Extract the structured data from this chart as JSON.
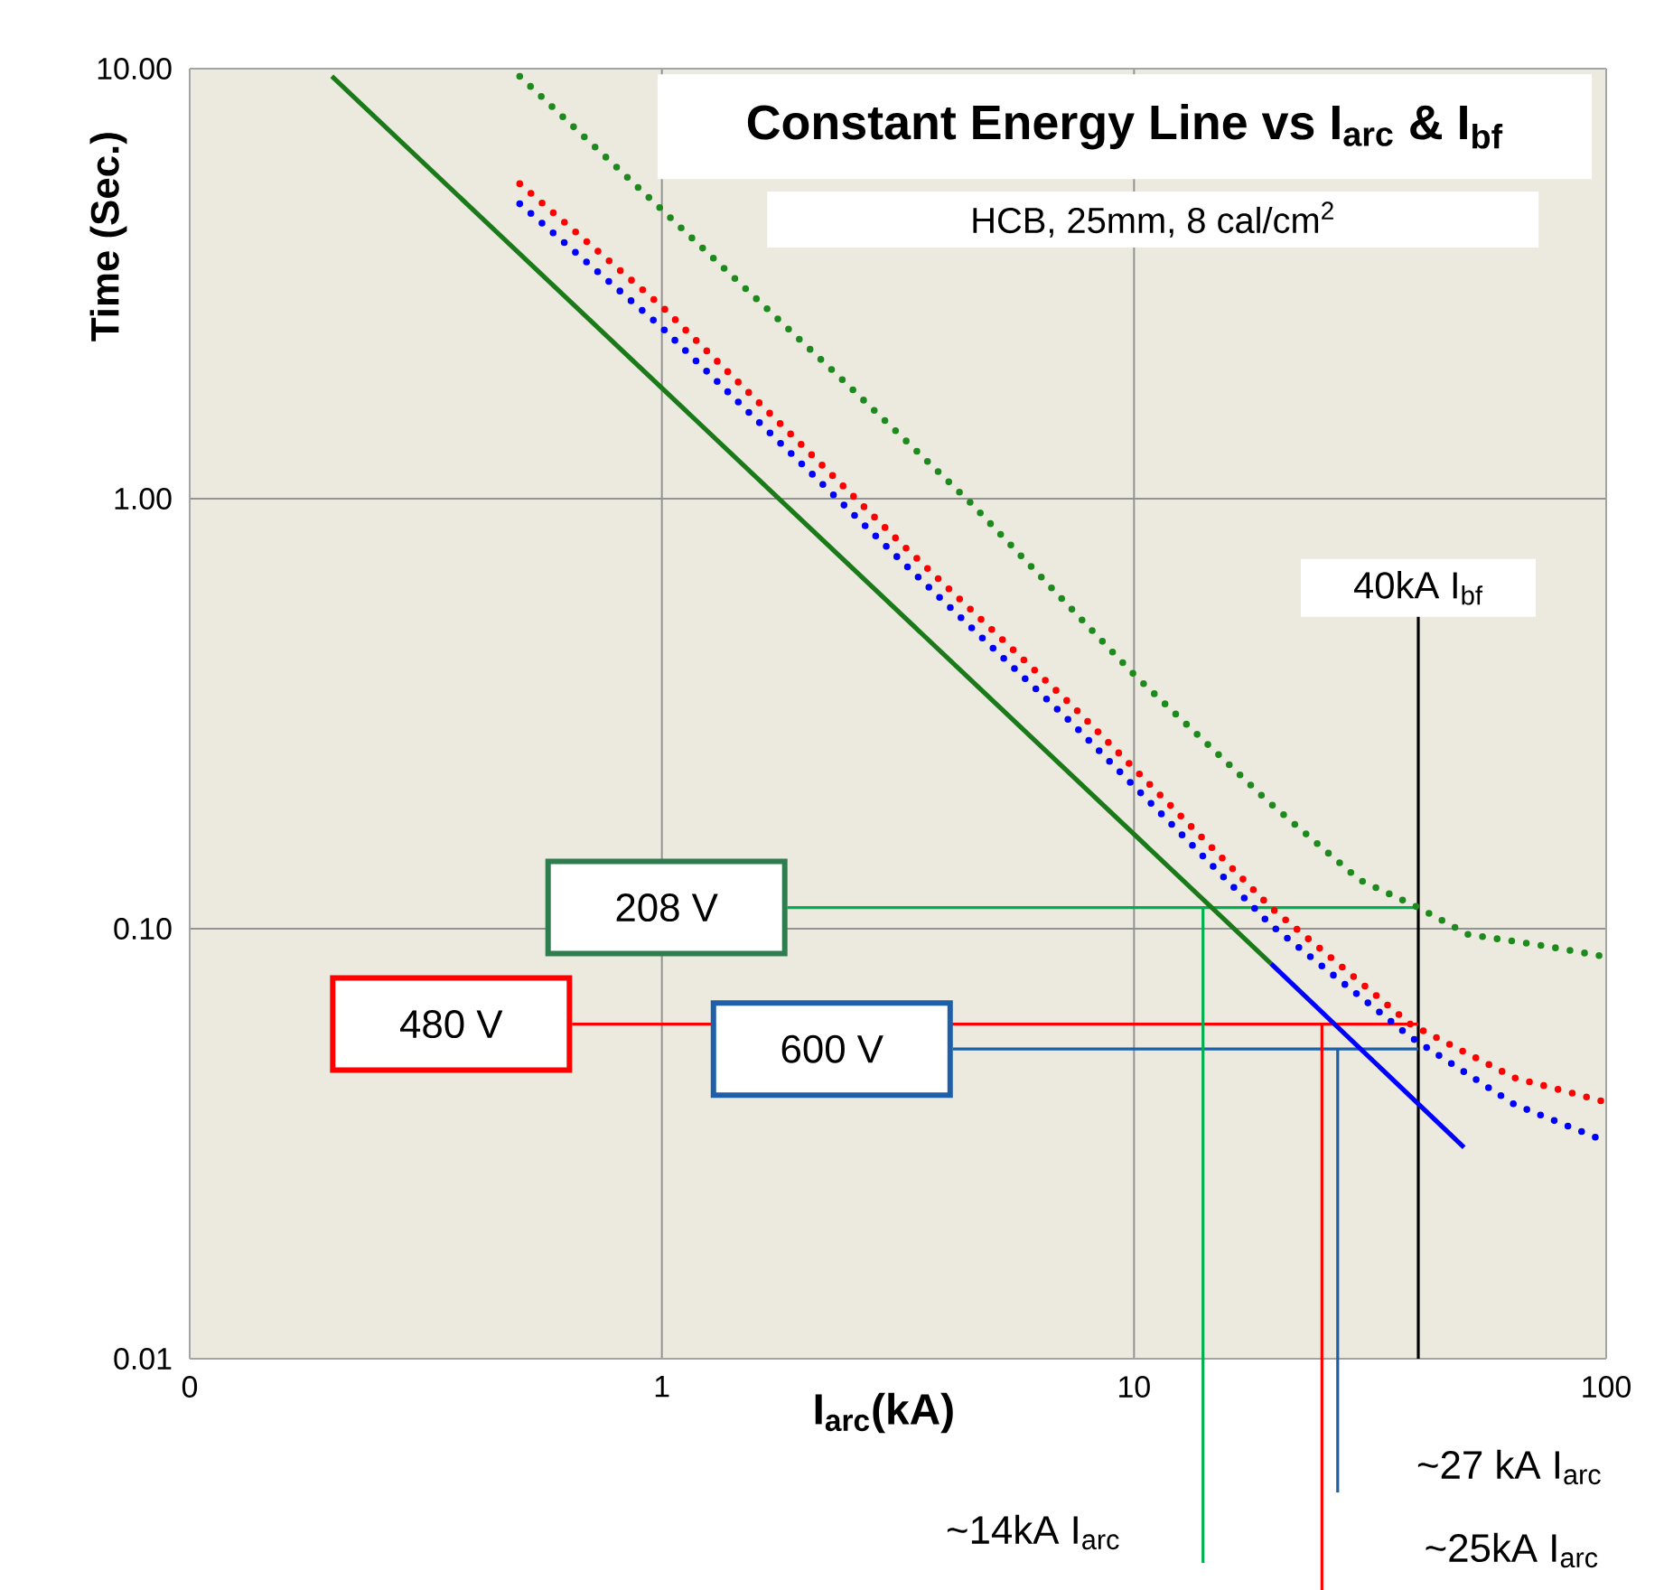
{
  "chart_data": {
    "type": "line",
    "title": "Constant Energy Line vs I$_{arc}$ & I$_{bf}$",
    "subtitle": "HCB, 25mm, 8 cal/cm$^{2}$",
    "xlabel": "I$_{arc}$(kA)",
    "ylabel": "Time (Sec.)",
    "log": "xy",
    "grid": true,
    "xlim": [
      0.1,
      100
    ],
    "ylim": [
      0.01,
      10
    ],
    "xticks": [
      {
        "value": 0.1,
        "label": "0"
      },
      1,
      10,
      100
    ],
    "yticks": [
      {
        "value": 0.01,
        "label": "0.01"
      },
      {
        "value": 0.1,
        "label": "0.10"
      },
      {
        "value": 1,
        "label": "1.00"
      },
      {
        "value": 10,
        "label": "10.00"
      }
    ],
    "series": [
      {
        "color": "#0000ff",
        "line_style": "solid",
        "x": [
          19.5,
          50
        ],
        "values": [
          0.083,
          0.031
        ]
      },
      {
        "color": "#1a7a1a",
        "line_style": "solid",
        "x": [
          0.2,
          19.5
        ],
        "values": [
          9.6,
          0.083
        ]
      },
      {
        "color": "#1e8a1e",
        "line_style": "dotted",
        "x": [
          0.5,
          1,
          2.4,
          4.5,
          10,
          19,
          30,
          40,
          51,
          75,
          100
        ],
        "values": [
          9.6,
          4.7,
          1.9,
          0.98,
          0.39,
          0.2,
          0.13,
          0.112,
          0.097,
          0.091,
          0.086
        ]
      },
      {
        "color": "#ff0000",
        "line_style": "dotted",
        "x": [
          0.5,
          1,
          3.2,
          7.4,
          19.5,
          38.5,
          64,
          100
        ],
        "values": [
          5.4,
          2.8,
          0.79,
          0.33,
          0.112,
          0.06,
          0.045,
          0.0395
        ]
      },
      {
        "color": "#0000ff",
        "line_style": "dotted",
        "x": [
          0.5,
          1,
          3.2,
          7.4,
          19.5,
          38.5,
          64,
          100
        ],
        "values": [
          4.85,
          2.5,
          0.72,
          0.3,
          0.102,
          0.056,
          0.039,
          0.032
        ]
      }
    ],
    "ref_lines": [
      {
        "axis": "x",
        "value": 40,
        "label": "40kA I$_{bf}$",
        "color": "#000000"
      },
      {
        "axis": "y",
        "value": 0.112,
        "label": "208 V",
        "color": "#00b050"
      },
      {
        "axis": "y",
        "value": 0.06,
        "label": "480 V",
        "color": "#ff0000"
      },
      {
        "axis": "y",
        "value": 0.0525,
        "label": "600 V",
        "color": "#1f5fa8"
      },
      {
        "axis": "x",
        "value": 14,
        "label": "~14kA I$_{arc}$",
        "color": "#00b050"
      },
      {
        "axis": "x",
        "value": 25,
        "label": "~25kA I$_{arc}$",
        "color": "#ff0000"
      },
      {
        "axis": "x",
        "value": 27,
        "label": "~27 kA I$_{arc}$",
        "color": "#1f5fa8"
      }
    ]
  }
}
